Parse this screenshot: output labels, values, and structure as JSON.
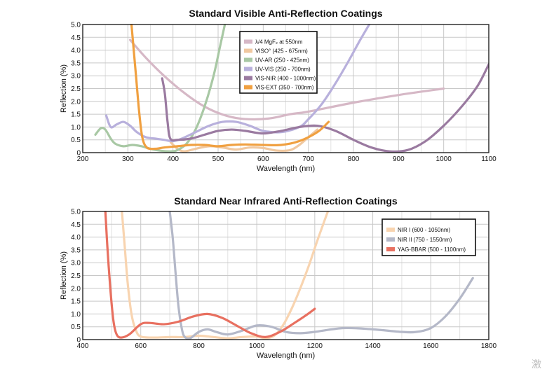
{
  "watermark": "激",
  "chart_data": [
    {
      "type": "line",
      "title": "Standard Visible Anti-Reflection Coatings",
      "xlabel": "Wavelength (nm)",
      "ylabel": "Reflection (%)",
      "xlim": [
        200,
        1100
      ],
      "ylim": [
        0,
        5
      ],
      "xticks": [
        "200",
        "300",
        "400",
        "500",
        "600",
        "700",
        "800",
        "900",
        "1000",
        "1100"
      ],
      "yticks": [
        "0",
        "0.5",
        "1.0",
        "1.5",
        "2.0",
        "2.5",
        "3.0",
        "3.5",
        "4.0",
        "4.5",
        "5.0"
      ],
      "legend_position": "top-center",
      "series": [
        {
          "name": "λ/4 MgF₂ at 550nm",
          "color": "#d6b8c6",
          "points": [
            [
              305,
              4.4
            ],
            [
              340,
              3.7
            ],
            [
              380,
              3.0
            ],
            [
              420,
              2.4
            ],
            [
              460,
              1.9
            ],
            [
              500,
              1.55
            ],
            [
              540,
              1.35
            ],
            [
              580,
              1.3
            ],
            [
              620,
              1.35
            ],
            [
              660,
              1.5
            ],
            [
              700,
              1.6
            ],
            [
              800,
              1.95
            ],
            [
              900,
              2.25
            ],
            [
              1000,
              2.5
            ]
          ]
        },
        {
          "name": "VISO° (425 - 675nm)",
          "color": "#f0c8a0",
          "points": [
            [
              395,
              0.4
            ],
            [
              410,
              0.15
            ],
            [
              425,
              0.05
            ],
            [
              450,
              0.15
            ],
            [
              480,
              0.25
            ],
            [
              510,
              0.2
            ],
            [
              540,
              0.12
            ],
            [
              570,
              0.2
            ],
            [
              600,
              0.18
            ],
            [
              630,
              0.08
            ],
            [
              660,
              0.1
            ],
            [
              680,
              0.3
            ],
            [
              700,
              0.6
            ],
            [
              720,
              0.9
            ]
          ]
        },
        {
          "name": "UV-AR (250 - 425nm)",
          "color": "#a8c8a4",
          "points": [
            [
              228,
              0.7
            ],
            [
              240,
              0.95
            ],
            [
              250,
              0.9
            ],
            [
              262,
              0.55
            ],
            [
              272,
              0.35
            ],
            [
              290,
              0.25
            ],
            [
              310,
              0.3
            ],
            [
              330,
              0.25
            ],
            [
              350,
              0.15
            ],
            [
              370,
              0.08
            ],
            [
              395,
              0.05
            ],
            [
              410,
              0.1
            ],
            [
              430,
              0.35
            ],
            [
              450,
              0.9
            ],
            [
              470,
              1.8
            ],
            [
              490,
              3.0
            ],
            [
              505,
              4.2
            ],
            [
              515,
              5.0
            ]
          ]
        },
        {
          "name": "UV-VIS (250 - 700nm)",
          "color": "#b8b0dc",
          "points": [
            [
              252,
              1.45
            ],
            [
              262,
              1.0
            ],
            [
              275,
              1.1
            ],
            [
              290,
              1.2
            ],
            [
              305,
              1.05
            ],
            [
              320,
              0.8
            ],
            [
              340,
              0.6
            ],
            [
              360,
              0.55
            ],
            [
              380,
              0.5
            ],
            [
              400,
              0.45
            ],
            [
              420,
              0.55
            ],
            [
              450,
              0.8
            ],
            [
              480,
              1.05
            ],
            [
              510,
              1.2
            ],
            [
              540,
              1.2
            ],
            [
              570,
              1.05
            ],
            [
              600,
              0.85
            ],
            [
              640,
              0.8
            ],
            [
              680,
              1.0
            ],
            [
              700,
              1.3
            ],
            [
              730,
              1.9
            ],
            [
              760,
              2.7
            ],
            [
              790,
              3.6
            ],
            [
              815,
              4.4
            ],
            [
              835,
              5.0
            ]
          ]
        },
        {
          "name": "VIS-NIR (400 - 1000nm)",
          "color": "#9a7aa0",
          "points": [
            [
              376,
              2.9
            ],
            [
              382,
              2.3
            ],
            [
              388,
              1.2
            ],
            [
              394,
              0.55
            ],
            [
              410,
              0.5
            ],
            [
              440,
              0.55
            ],
            [
              470,
              0.7
            ],
            [
              500,
              0.85
            ],
            [
              530,
              0.9
            ],
            [
              560,
              0.85
            ],
            [
              600,
              0.75
            ],
            [
              640,
              0.85
            ],
            [
              680,
              1.0
            ],
            [
              720,
              1.05
            ],
            [
              760,
              0.85
            ],
            [
              800,
              0.5
            ],
            [
              840,
              0.2
            ],
            [
              880,
              0.05
            ],
            [
              920,
              0.1
            ],
            [
              960,
              0.45
            ],
            [
              1000,
              1.05
            ],
            [
              1040,
              1.8
            ],
            [
              1075,
              2.6
            ],
            [
              1100,
              3.45
            ]
          ]
        },
        {
          "name": "VIS-EXT (350 - 700nm)",
          "color": "#f0a040",
          "points": [
            [
              308,
              5.0
            ],
            [
              312,
              4.2
            ],
            [
              318,
              3.0
            ],
            [
              325,
              1.6
            ],
            [
              332,
              0.6
            ],
            [
              342,
              0.2
            ],
            [
              360,
              0.15
            ],
            [
              380,
              0.2
            ],
            [
              410,
              0.25
            ],
            [
              440,
              0.3
            ],
            [
              470,
              0.3
            ],
            [
              500,
              0.25
            ],
            [
              530,
              0.3
            ],
            [
              560,
              0.32
            ],
            [
              600,
              0.3
            ],
            [
              640,
              0.3
            ],
            [
              680,
              0.45
            ],
            [
              720,
              0.8
            ],
            [
              745,
              1.2
            ]
          ]
        }
      ]
    },
    {
      "type": "line",
      "title": "Standard Near Infrared Anti-Reflection Coatings",
      "xlabel": "Wavelength (nm)",
      "ylabel": "Reflection (%)",
      "xlim": [
        400,
        1800
      ],
      "ylim": [
        0,
        5
      ],
      "xticks": [
        "400",
        "600",
        "800",
        "1000",
        "1200",
        "1400",
        "1600",
        "1800"
      ],
      "yticks": [
        "0",
        "0.5",
        "1.0",
        "1.5",
        "2.0",
        "2.5",
        "3.0",
        "3.5",
        "4.0",
        "4.5",
        "5.0"
      ],
      "legend_position": "top-right",
      "series": [
        {
          "name": "NIR I (600 - 1050nm)",
          "color": "#f8d4b0",
          "points": [
            [
              535,
              5.0
            ],
            [
              545,
              3.6
            ],
            [
              555,
              2.2
            ],
            [
              568,
              1.0
            ],
            [
              582,
              0.4
            ],
            [
              600,
              0.12
            ],
            [
              650,
              0.08
            ],
            [
              700,
              0.1
            ],
            [
              750,
              0.1
            ],
            [
              800,
              0.15
            ],
            [
              850,
              0.1
            ],
            [
              900,
              0.05
            ],
            [
              950,
              0.1
            ],
            [
              1000,
              0.12
            ],
            [
              1030,
              0.05
            ],
            [
              1060,
              0.15
            ],
            [
              1090,
              0.55
            ],
            [
              1120,
              1.2
            ],
            [
              1150,
              2.0
            ],
            [
              1180,
              2.9
            ],
            [
              1210,
              3.9
            ],
            [
              1245,
              5.0
            ]
          ]
        },
        {
          "name": "NIR II (750 - 1550nm)",
          "color": "#b4b8c8",
          "points": [
            [
              700,
              5.0
            ],
            [
              710,
              4.0
            ],
            [
              720,
              2.6
            ],
            [
              730,
              1.3
            ],
            [
              742,
              0.4
            ],
            [
              752,
              0.1
            ],
            [
              770,
              0.05
            ],
            [
              800,
              0.3
            ],
            [
              830,
              0.4
            ],
            [
              860,
              0.3
            ],
            [
              900,
              0.2
            ],
            [
              950,
              0.35
            ],
            [
              1000,
              0.55
            ],
            [
              1050,
              0.5
            ],
            [
              1100,
              0.3
            ],
            [
              1150,
              0.25
            ],
            [
              1200,
              0.3
            ],
            [
              1300,
              0.45
            ],
            [
              1400,
              0.4
            ],
            [
              1500,
              0.3
            ],
            [
              1550,
              0.3
            ],
            [
              1600,
              0.45
            ],
            [
              1650,
              0.9
            ],
            [
              1700,
              1.6
            ],
            [
              1745,
              2.4
            ]
          ]
        },
        {
          "name": "YAG-BBAR (500 - 1100nm)",
          "color": "#e87060",
          "points": [
            [
              478,
              5.0
            ],
            [
              485,
              3.6
            ],
            [
              495,
              2.0
            ],
            [
              505,
              0.8
            ],
            [
              515,
              0.25
            ],
            [
              530,
              0.08
            ],
            [
              560,
              0.2
            ],
            [
              600,
              0.6
            ],
            [
              630,
              0.65
            ],
            [
              680,
              0.6
            ],
            [
              730,
              0.7
            ],
            [
              780,
              0.9
            ],
            [
              830,
              1.0
            ],
            [
              880,
              0.85
            ],
            [
              930,
              0.55
            ],
            [
              980,
              0.25
            ],
            [
              1030,
              0.1
            ],
            [
              1080,
              0.3
            ],
            [
              1130,
              0.65
            ],
            [
              1170,
              0.95
            ],
            [
              1200,
              1.2
            ]
          ]
        }
      ]
    }
  ]
}
